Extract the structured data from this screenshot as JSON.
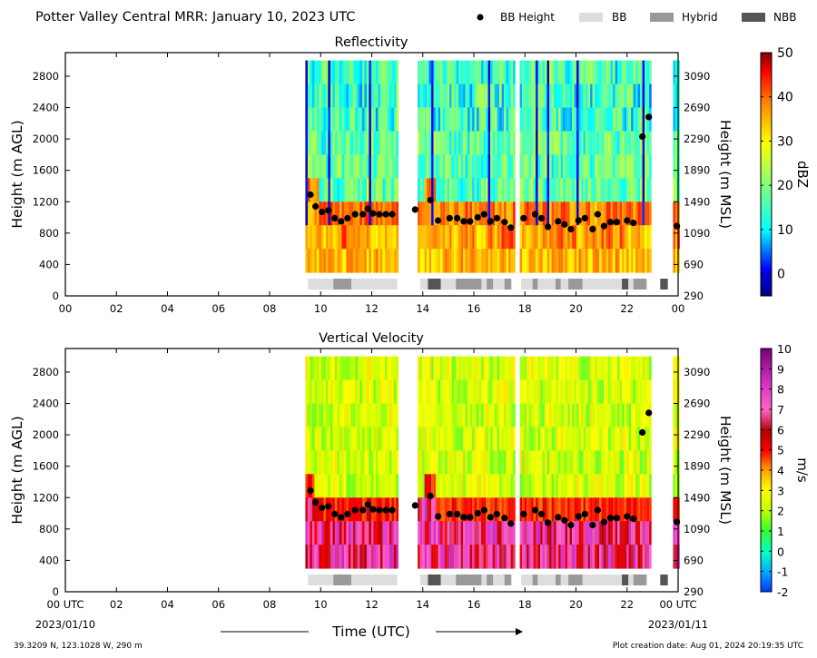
{
  "figure": {
    "title": "Potter Valley Central MRR:  January 10, 2023 UTC",
    "legend": [
      {
        "label": "BB Height",
        "kind": "dot",
        "color": "#000000"
      },
      {
        "label": "BB",
        "kind": "box",
        "color": "#dddddd"
      },
      {
        "label": "Hybrid",
        "kind": "box",
        "color": "#999999"
      },
      {
        "label": "NBB",
        "kind": "box",
        "color": "#555555"
      }
    ],
    "xaxis_label": "Time (UTC)",
    "start_date": "2023/01/10",
    "end_date": "2023/01/11",
    "location": "39.3209 N, 123.1028 W, 290 m",
    "creation_date": "Plot creation date: Aug 01, 2024 20:19:35 UTC"
  },
  "chart_data": [
    {
      "type": "heatmap",
      "title": "Reflectivity",
      "xlabel": "",
      "ylabel": "Height (m AGL)",
      "ylabel_right": "Height (m MSL)",
      "xlim": [
        0,
        24
      ],
      "ylim": [
        0,
        3100
      ],
      "x_ticks": [
        "00",
        "02",
        "04",
        "06",
        "08",
        "10",
        "12",
        "14",
        "16",
        "18",
        "20",
        "22",
        "00"
      ],
      "y_ticks": [
        0,
        400,
        800,
        1200,
        1600,
        2000,
        2400,
        2800
      ],
      "y_ticks_right": [
        290,
        690,
        1090,
        1490,
        1890,
        2290,
        2690,
        3090
      ],
      "colorbar": {
        "label": "dBZ",
        "min": -5,
        "max": 50,
        "ticks": [
          0,
          10,
          20,
          30,
          40,
          50
        ],
        "colormap": "jet"
      },
      "grid": false
    },
    {
      "type": "heatmap",
      "title": "Vertical Velocity",
      "xlabel": "Time (UTC)",
      "ylabel": "Height (m AGL)",
      "ylabel_right": "Height (m MSL)",
      "xlim": [
        0,
        24
      ],
      "ylim": [
        0,
        3100
      ],
      "x_ticks": [
        "00 UTC",
        "02",
        "04",
        "06",
        "08",
        "10",
        "12",
        "14",
        "16",
        "18",
        "20",
        "22",
        "00 UTC"
      ],
      "y_ticks": [
        0,
        400,
        800,
        1200,
        1600,
        2000,
        2400,
        2800
      ],
      "y_ticks_right": [
        290,
        690,
        1090,
        1490,
        1890,
        2290,
        2690,
        3090
      ],
      "colorbar": {
        "label": "m/s",
        "min": -2,
        "max": 10,
        "ticks": [
          -2,
          -1,
          0,
          1,
          2,
          3,
          4,
          5,
          6,
          7,
          8,
          9,
          10
        ],
        "colormap": "velocity"
      },
      "grid": false
    }
  ],
  "data_coverage": {
    "segments_hours": [
      [
        9.4,
        13.0
      ],
      [
        13.8,
        17.6
      ],
      [
        17.8,
        22.9
      ],
      [
        23.8,
        24.0
      ]
    ],
    "data_top_m": 3000
  },
  "bright_band": {
    "x": [
      9.6,
      9.8,
      10.05,
      10.3,
      10.55,
      10.8,
      11.05,
      11.35,
      11.65,
      11.85,
      12.05,
      12.3,
      12.55,
      12.8,
      13.7,
      14.3,
      14.6,
      15.05,
      15.35,
      15.6,
      15.85,
      16.15,
      16.4,
      16.65,
      16.9,
      17.2,
      17.45,
      17.95,
      18.4,
      18.65,
      18.9,
      19.3,
      19.55,
      19.8,
      20.1,
      20.35,
      20.65,
      20.85,
      21.1,
      21.35,
      21.6,
      22.0,
      22.25,
      22.6,
      22.85,
      23.95
    ],
    "y": [
      1290,
      1140,
      1070,
      1090,
      990,
      950,
      990,
      1040,
      1040,
      1110,
      1050,
      1040,
      1040,
      1040,
      1100,
      1220,
      960,
      990,
      990,
      950,
      950,
      1000,
      1040,
      950,
      990,
      940,
      870,
      990,
      1040,
      990,
      880,
      950,
      910,
      850,
      960,
      990,
      850,
      1040,
      890,
      940,
      940,
      960,
      930,
      2030,
      2280,
      890
    ]
  },
  "bb_type_strip": {
    "bb": [
      [
        9.5,
        13.0
      ],
      [
        13.9,
        17.5
      ],
      [
        17.85,
        22.8
      ]
    ],
    "hybrid": [
      [
        10.5,
        11.2
      ],
      [
        15.3,
        16.3
      ],
      [
        16.5,
        16.75
      ],
      [
        17.2,
        17.45
      ],
      [
        18.3,
        18.5
      ],
      [
        19.2,
        19.4
      ],
      [
        19.7,
        20.25
      ],
      [
        22.25,
        22.75
      ]
    ],
    "nbb": [
      [
        14.2,
        14.7
      ],
      [
        21.8,
        22.05
      ],
      [
        23.3,
        23.6
      ]
    ]
  }
}
